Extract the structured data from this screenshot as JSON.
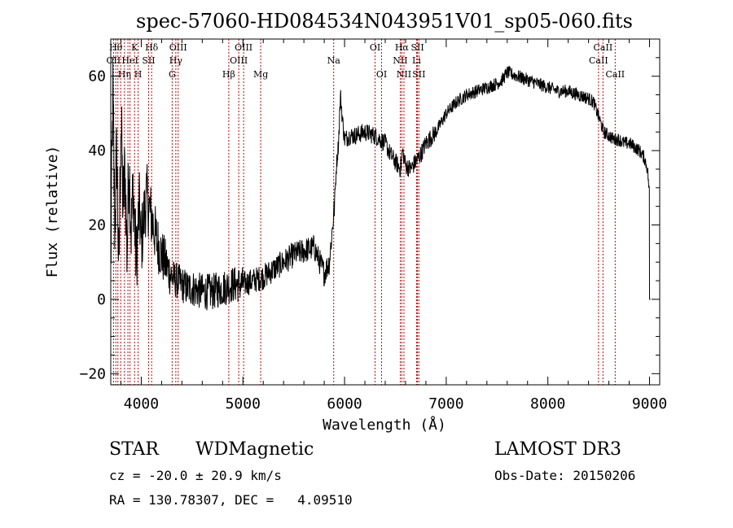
{
  "chart_data": {
    "type": "line",
    "title": "spec-57060-HD084534N043951V01_sp05-060.fits",
    "xlabel": "Wavelength (Å)",
    "ylabel": "Flux (relative)",
    "xlim": [
      3700,
      9100
    ],
    "ylim": [
      -23,
      70
    ],
    "x_ticks": [
      4000,
      5000,
      6000,
      7000,
      8000,
      9000
    ],
    "y_ticks": [
      -20,
      0,
      20,
      40,
      60
    ],
    "grid": false,
    "line_color": "#000000",
    "marker_color": "#cc0000",
    "series": [
      {
        "x": [
          3700,
          3720,
          3740,
          3760,
          3780,
          3800,
          3820,
          3840,
          3860,
          3880,
          3900,
          3920,
          3950,
          3980,
          4000,
          4050,
          4100,
          4150,
          4200,
          4250,
          4300,
          4350,
          4400,
          4450,
          4500,
          4600,
          4700,
          4800,
          4900,
          5000,
          5100,
          5200,
          5300,
          5400,
          5500,
          5600,
          5700,
          5800,
          5850,
          5880,
          5900,
          5920,
          5940,
          5960,
          5980,
          6000,
          6050,
          6100,
          6200,
          6300,
          6400,
          6450,
          6500,
          6550,
          6570,
          6600,
          6650,
          6700,
          6750,
          6800,
          6900,
          7000,
          7100,
          7200,
          7300,
          7400,
          7500,
          7550,
          7600,
          7700,
          7800,
          7900,
          8000,
          8100,
          8200,
          8300,
          8400,
          8450,
          8500,
          8550,
          8600,
          8650,
          8700,
          8750,
          8800,
          8850,
          8900,
          8950,
          8980,
          9000,
          9010
        ],
        "y": [
          8,
          55,
          20,
          40,
          5,
          50,
          25,
          35,
          12,
          38,
          18,
          30,
          10,
          25,
          15,
          28,
          22,
          16,
          12,
          9,
          6,
          5,
          4,
          3,
          3,
          2,
          2,
          3,
          4,
          4,
          5,
          6,
          8,
          10,
          12,
          13,
          14,
          7,
          10,
          19,
          25,
          36,
          42,
          55,
          48,
          43,
          44,
          44,
          45,
          44,
          42,
          39,
          37,
          35,
          40,
          36,
          35,
          37,
          39,
          42,
          45,
          50,
          53,
          55,
          56,
          57,
          58,
          59,
          61,
          60,
          59,
          58,
          57,
          56,
          56,
          55,
          54,
          53,
          49,
          45,
          44,
          43,
          43,
          42,
          42,
          41,
          40,
          38,
          35,
          28,
          0
        ]
      }
    ],
    "lines": [
      {
        "x": 3727,
        "label": "OII",
        "row": 2
      },
      {
        "x": 3750,
        "label": "Hθ",
        "row": 1
      },
      {
        "x": 3770,
        "label": "",
        "row": 0
      },
      {
        "x": 3798,
        "label": "",
        "row": 0
      },
      {
        "x": 3835,
        "label": "Hη",
        "row": 3
      },
      {
        "x": 3869,
        "label": "",
        "row": 0
      },
      {
        "x": 3889,
        "label": "HeI",
        "row": 2
      },
      {
        "x": 3934,
        "label": "K",
        "row": 1
      },
      {
        "x": 3969,
        "label": "H",
        "row": 3
      },
      {
        "x": 4072,
        "label": "SII",
        "row": 2
      },
      {
        "x": 4102,
        "label": "Hδ",
        "row": 1
      },
      {
        "x": 4304,
        "label": "G",
        "row": 3
      },
      {
        "x": 4340,
        "label": "Hγ",
        "row": 2
      },
      {
        "x": 4363,
        "label": "OIII",
        "row": 1
      },
      {
        "x": 4861,
        "label": "Hβ",
        "row": 3
      },
      {
        "x": 4959,
        "label": "OIII",
        "row": 2
      },
      {
        "x": 5007,
        "label": "OIII",
        "row": 1
      },
      {
        "x": 5175,
        "label": "Mg",
        "row": 3
      },
      {
        "x": 5893,
        "label": "Na",
        "row": 2
      },
      {
        "x": 6300,
        "label": "OI",
        "row": 1
      },
      {
        "x": 6364,
        "label": "OI",
        "row": 3
      },
      {
        "x": 6548,
        "label": "NII",
        "row": 2
      },
      {
        "x": 6563,
        "label": "Hα",
        "row": 1
      },
      {
        "x": 6584,
        "label": "NII",
        "row": 3
      },
      {
        "x": 6708,
        "label": "Li",
        "row": 2
      },
      {
        "x": 6717,
        "label": "SII",
        "row": 1
      },
      {
        "x": 6731,
        "label": "SII",
        "row": 3
      },
      {
        "x": 8498,
        "label": "CaII",
        "row": 2
      },
      {
        "x": 8542,
        "label": "CaII",
        "row": 1
      },
      {
        "x": 8662,
        "label": "CaII",
        "row": 3
      }
    ]
  },
  "info": {
    "class": "STAR",
    "subclass": "WDMagnetic",
    "survey": "LAMOST DR3",
    "cz": "cz = -20.0 ± 20.9 km/s",
    "obsdate": "Obs-Date: 20150206",
    "radec": "RA = 130.78307, DEC =   4.09510"
  }
}
